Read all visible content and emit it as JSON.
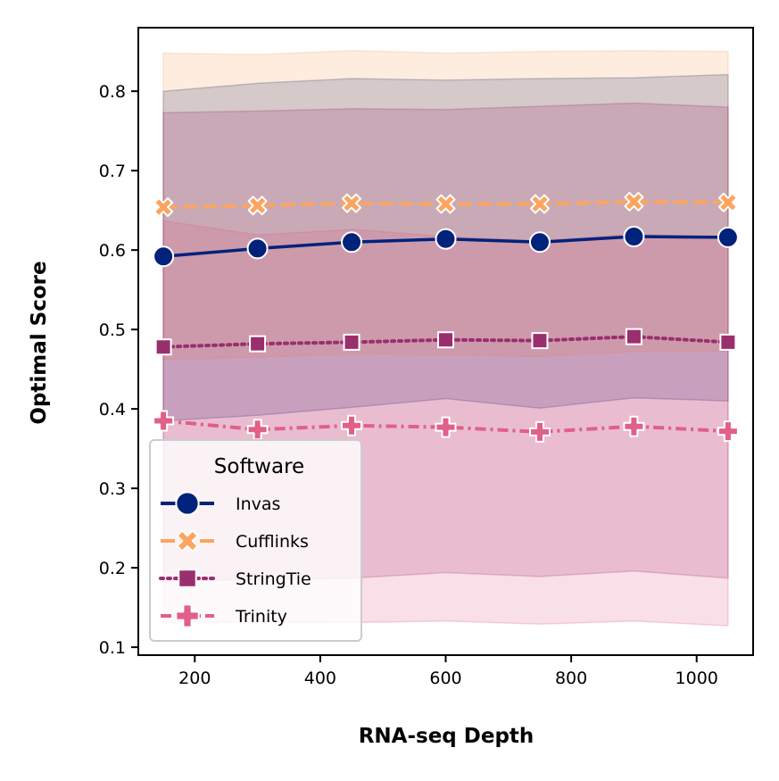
{
  "chart_data": {
    "type": "line",
    "title": "",
    "xlabel": "RNA-seq Depth",
    "ylabel": "Optimal Score",
    "xlim": [
      110,
      1090
    ],
    "ylim": [
      0.09,
      0.88
    ],
    "x_ticks": [
      200,
      400,
      600,
      800,
      1000
    ],
    "y_ticks": [
      0.1,
      0.2,
      0.3,
      0.4,
      0.5,
      0.6,
      0.7,
      0.8
    ],
    "x_tick_labels": [
      "200",
      "400",
      "600",
      "800",
      "1000"
    ],
    "y_tick_labels": [
      "0.1",
      "0.2",
      "0.3",
      "0.4",
      "0.5",
      "0.6",
      "0.7",
      "0.8"
    ],
    "grid": false,
    "legend": {
      "title": "Software",
      "placement": "lower-left"
    },
    "x": [
      150,
      300,
      450,
      600,
      750,
      900,
      1050
    ],
    "series": [
      {
        "name": "Invas",
        "color": "#00227a",
        "marker": "circle",
        "line_style": "solid",
        "values": [
          0.592,
          0.602,
          0.61,
          0.614,
          0.61,
          0.617,
          0.616
        ],
        "band_lower": [
          0.385,
          0.392,
          0.402,
          0.413,
          0.401,
          0.414,
          0.41
        ],
        "band_upper": [
          0.8,
          0.81,
          0.816,
          0.814,
          0.816,
          0.817,
          0.821
        ]
      },
      {
        "name": "Cufflinks",
        "color": "#fba560",
        "marker": "x",
        "line_style": "dashed",
        "values": [
          0.654,
          0.656,
          0.659,
          0.658,
          0.658,
          0.661,
          0.66
        ],
        "band_lower": [
          0.462,
          0.465,
          0.469,
          0.468,
          0.466,
          0.472,
          0.473
        ],
        "band_upper": [
          0.848,
          0.846,
          0.851,
          0.848,
          0.85,
          0.851,
          0.85
        ]
      },
      {
        "name": "StringTie",
        "color": "#9a2f6d",
        "marker": "square",
        "line_style": "dotted",
        "values": [
          0.478,
          0.482,
          0.484,
          0.487,
          0.486,
          0.491,
          0.484
        ],
        "band_lower": [
          0.183,
          0.185,
          0.187,
          0.194,
          0.189,
          0.196,
          0.187
        ],
        "band_upper": [
          0.773,
          0.775,
          0.778,
          0.777,
          0.781,
          0.785,
          0.78
        ]
      },
      {
        "name": "Trinity",
        "color": "#e06089",
        "marker": "plus",
        "line_style": "dashdot",
        "values": [
          0.385,
          0.374,
          0.379,
          0.377,
          0.371,
          0.378,
          0.372
        ],
        "band_lower": [
          0.131,
          0.132,
          0.131,
          0.133,
          0.129,
          0.133,
          0.127
        ],
        "band_upper": [
          0.637,
          0.619,
          0.626,
          0.617,
          0.612,
          0.62,
          0.616
        ]
      }
    ]
  }
}
